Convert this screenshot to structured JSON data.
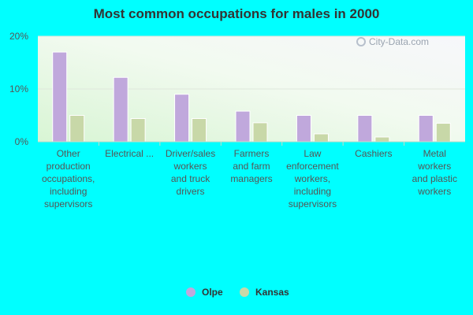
{
  "chart_data": {
    "type": "bar",
    "title": "Most common occupations for males in 2000",
    "categories": [
      "Other\nproduction\noccupations,\nincluding\nsupervisors",
      "Electrical ...",
      "Driver/sales\nworkers\nand truck\ndrivers",
      "Farmers\nand farm\nmanagers",
      "Law\nenforcement\nworkers,\nincluding\nsupervisors",
      "Cashiers",
      "Metal\nworkers\nand plastic\nworkers"
    ],
    "series": [
      {
        "name": "Olpe",
        "color": "#c0a8dc",
        "values": [
          17.0,
          12.2,
          9.0,
          5.8,
          5.0,
          5.0,
          5.0
        ]
      },
      {
        "name": "Kansas",
        "color": "#c8d8a8",
        "values": [
          5.0,
          4.4,
          4.4,
          3.6,
          1.5,
          0.9,
          3.5
        ]
      }
    ],
    "yticks": [
      "0%",
      "10%",
      "20%"
    ],
    "ylim": [
      0,
      20
    ],
    "grid": true,
    "legend_position": "bottom-center"
  },
  "watermark": "City-Data.com"
}
